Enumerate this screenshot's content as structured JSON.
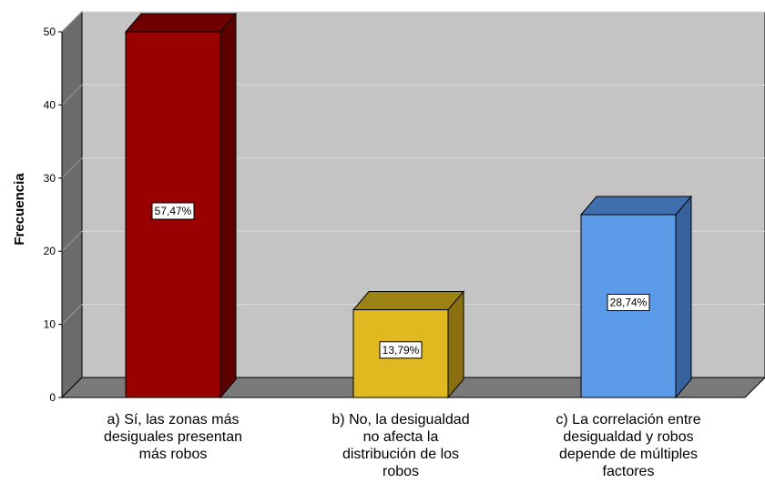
{
  "colors": {
    "wall": "#c4c4c4",
    "side_wall": "#6b6b6b",
    "floor": "#7a7a7a",
    "grid": "#d9d9d9"
  },
  "chart_data": {
    "type": "bar",
    "ylabel": "Frecuencia",
    "ylim": [
      0,
      50
    ],
    "yticks": [
      0,
      10,
      20,
      30,
      40,
      50
    ],
    "grid": true,
    "categories": [
      [
        "a) Sí, las zonas más",
        "desiguales presentan",
        "más robos"
      ],
      [
        "b) No, la desigualdad",
        "no afecta la",
        "distribución de los",
        "robos"
      ],
      [
        "c) La correlación entre",
        "desigualdad y robos",
        "depende de múltiples",
        "factores"
      ]
    ],
    "values": [
      50,
      12,
      25
    ],
    "data_labels": [
      "57,47%",
      "13,79%",
      "28,74%"
    ],
    "bar_colors": [
      {
        "front": "#990000",
        "side": "#5c0000",
        "top": "#6e0000"
      },
      {
        "front": "#e0b820",
        "side": "#8a7010",
        "top": "#9c8212"
      },
      {
        "front": "#5b9be8",
        "side": "#36629e",
        "top": "#3f6fae"
      }
    ]
  }
}
